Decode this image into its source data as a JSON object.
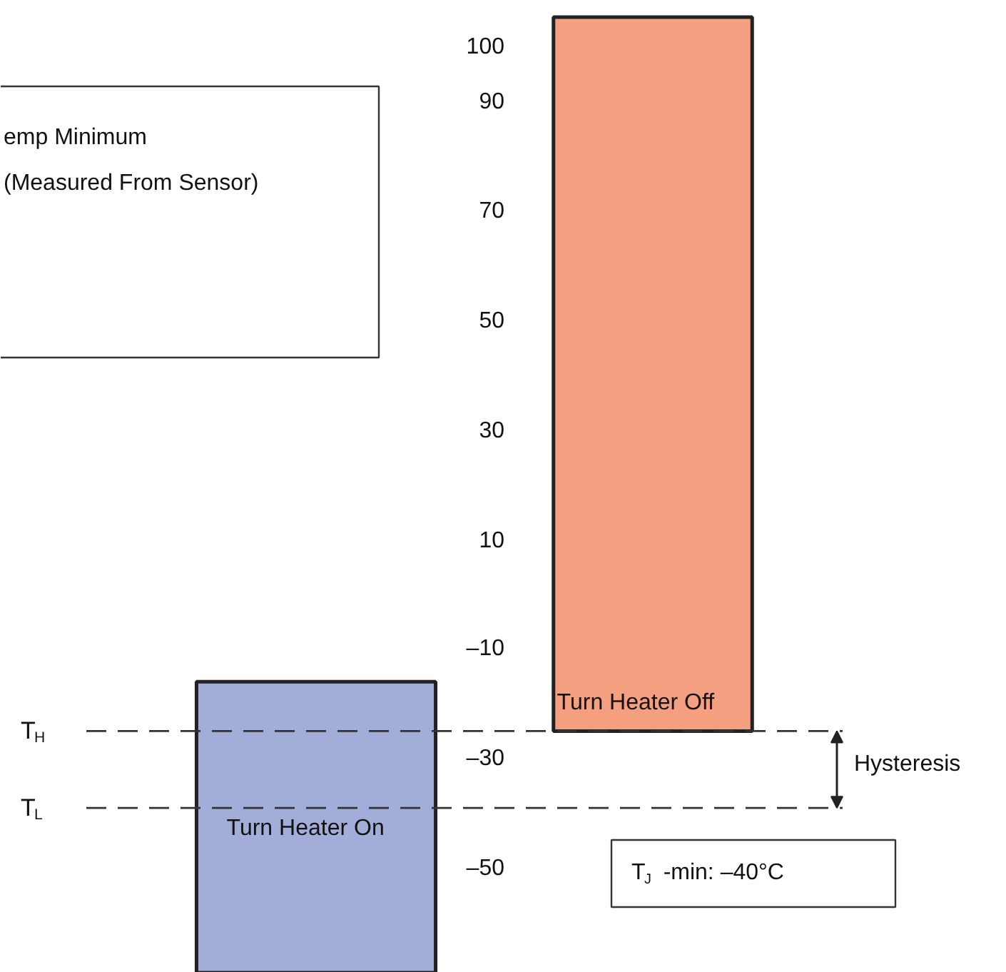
{
  "chart_data": {
    "type": "bar",
    "categories": [
      null,
      null
    ],
    "base": [
      -69,
      -25
    ],
    "values": [
      53,
      130
    ],
    "colors": [
      "#a3aed8",
      "#f4a080"
    ],
    "ylim": [
      -69,
      108
    ],
    "yticks": [
      100,
      90,
      70,
      50,
      30,
      {
        "value": 10,
        "label": "10"
      },
      {
        "value": -10,
        "label": "–10"
      },
      {
        "value": -30,
        "label": "–30"
      },
      {
        "value": -50,
        "label": "–50"
      }
    ],
    "tick_labels": "y",
    "grid": false,
    "ref_lines": [
      {
        "axis": "y",
        "value": -25,
        "label": "T$_{H}$",
        "line_style": "dashed",
        "color": "#333333"
      },
      {
        "axis": "y",
        "value": -39,
        "label": "T$_{L}$",
        "line_style": "dashed",
        "color": "#333333"
      }
    ],
    "annotations": [
      "Turn Heater Off",
      "Turn Heater On",
      "Hysteresis",
      "T$_{J}$ -min: –40°C",
      "emp Minimum",
      "(Measured From Sensor)"
    ]
  }
}
